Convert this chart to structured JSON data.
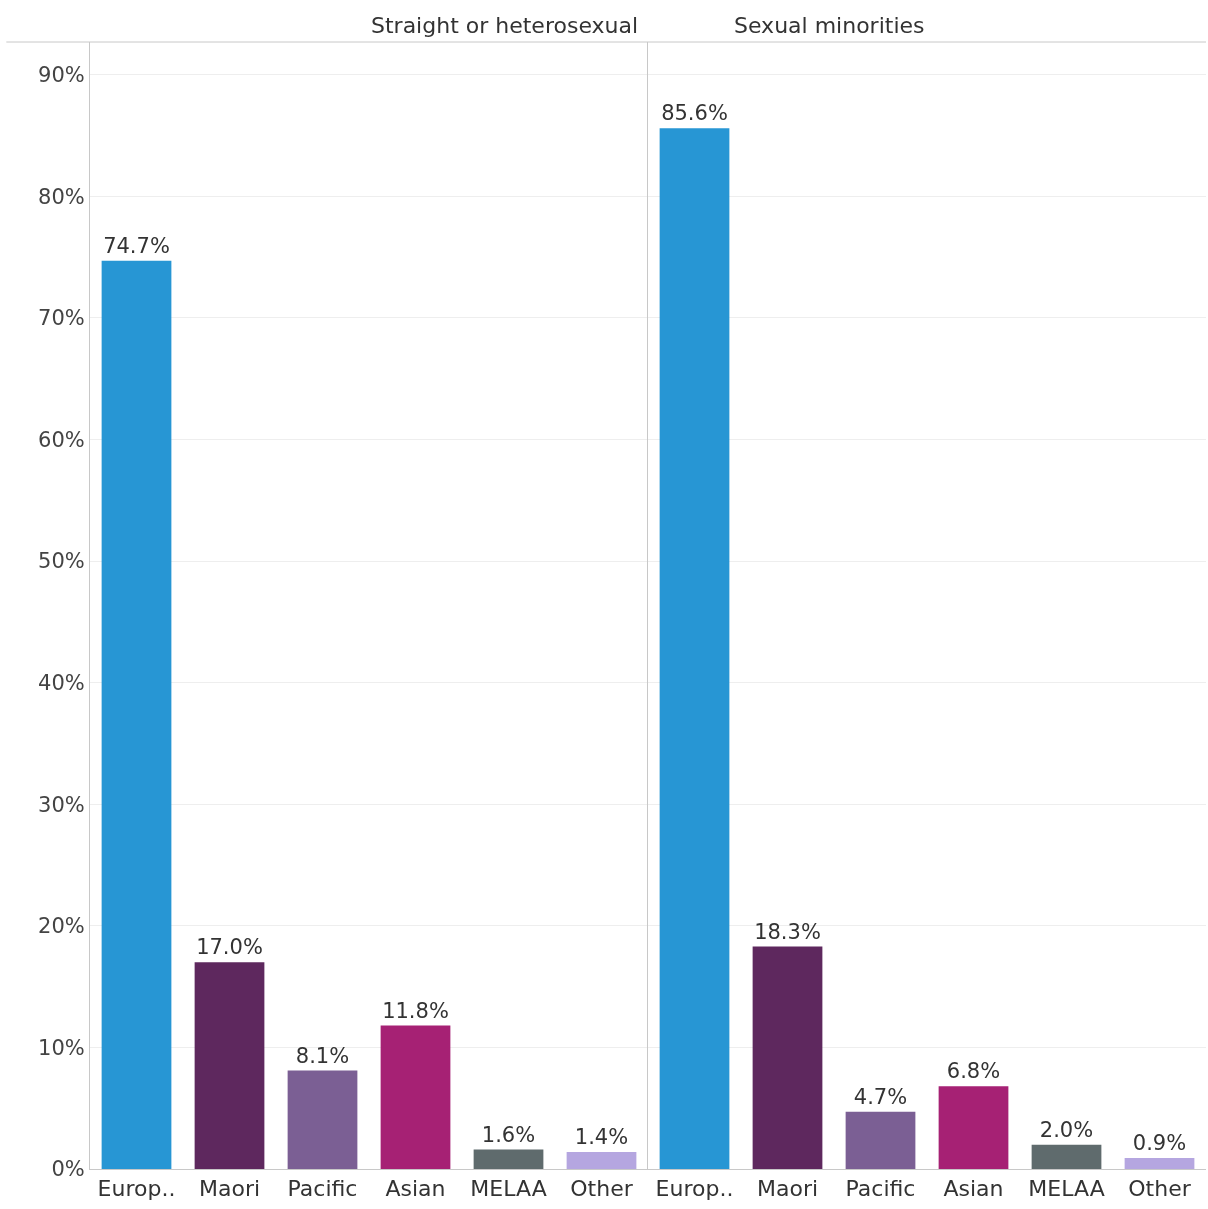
{
  "chart_data": [
    {
      "type": "bar",
      "title": "Straight or heterosexual",
      "categories": [
        "Europ..",
        "Maori",
        "Pacific",
        "Asian",
        "MELAA",
        "Other"
      ],
      "values": [
        74.7,
        17.0,
        8.1,
        11.8,
        1.6,
        1.4
      ],
      "value_labels": [
        "74.7%",
        "17.0%",
        "8.1%",
        "11.8%",
        "1.6%",
        "1.4%"
      ],
      "colors": [
        "#2796d4",
        "#5e285e",
        "#7b5f94",
        "#a62174",
        "#5f6b6d",
        "#b5a6e0"
      ],
      "ylim": [
        0,
        92.7
      ],
      "yticks": [
        {
          "value": 0,
          "label": "0%"
        },
        {
          "value": 10,
          "label": "10%"
        },
        {
          "value": 20,
          "label": "20%"
        },
        {
          "value": 30,
          "label": "30%"
        },
        {
          "value": 40,
          "label": "40%"
        },
        {
          "value": 50,
          "label": "50%"
        },
        {
          "value": 60,
          "label": "60%"
        },
        {
          "value": 70,
          "label": "70%"
        },
        {
          "value": 80,
          "label": "80%"
        },
        {
          "value": 90,
          "label": "90%"
        }
      ],
      "grid": "y"
    },
    {
      "type": "bar",
      "title": "Sexual minorities",
      "categories": [
        "Europ..",
        "Maori",
        "Pacific",
        "Asian",
        "MELAA",
        "Other"
      ],
      "values": [
        85.6,
        18.3,
        4.7,
        6.8,
        2.0,
        0.9
      ],
      "value_labels": [
        "85.6%",
        "18.3%",
        "4.7%",
        "6.8%",
        "2.0%",
        "0.9%"
      ],
      "colors": [
        "#2796d4",
        "#5e285e",
        "#7b5f94",
        "#a62174",
        "#5f6b6d",
        "#b5a6e0"
      ],
      "ylim": [
        0,
        92.7
      ],
      "grid": "y",
      "tick_labels": "x"
    }
  ]
}
